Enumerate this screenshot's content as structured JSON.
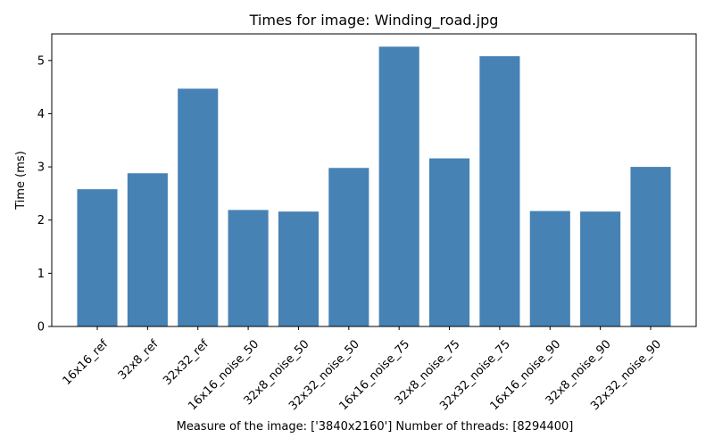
{
  "chart_data": {
    "type": "bar",
    "title": "Times for image: Winding_road.jpg",
    "xlabel": "Measure of the image: ['3840x2160'] Number of threads: [8294400]",
    "ylabel": "Time (ms)",
    "categories": [
      "16x16_ref",
      "32x8_ref",
      "32x32_ref",
      "16x16_noise_50",
      "32x8_noise_50",
      "32x32_noise_50",
      "16x16_noise_75",
      "32x8_noise_75",
      "32x32_noise_75",
      "16x16_noise_90",
      "32x8_noise_90",
      "32x32_noise_90"
    ],
    "values": [
      2.58,
      2.88,
      4.47,
      2.19,
      2.16,
      2.98,
      5.26,
      3.16,
      5.08,
      2.17,
      2.16,
      3.0
    ],
    "ylim": [
      0,
      5.5
    ],
    "yticks": [
      0,
      1,
      2,
      3,
      4,
      5
    ],
    "grid": false,
    "bar_color": "#4682b4"
  }
}
